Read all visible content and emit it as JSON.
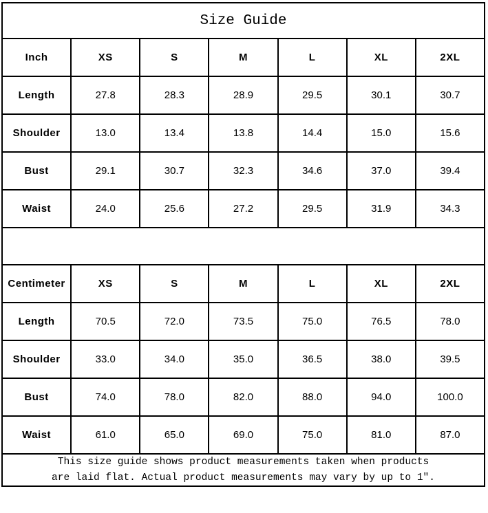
{
  "title": "Size Guide",
  "tables": [
    {
      "unit": "Inch",
      "sizes": [
        "XS",
        "S",
        "M",
        "L",
        "XL",
        "2XL"
      ],
      "rows": [
        {
          "label": "Length",
          "values": [
            "27.8",
            "28.3",
            "28.9",
            "29.5",
            "30.1",
            "30.7"
          ]
        },
        {
          "label": "Shoulder",
          "values": [
            "13.0",
            "13.4",
            "13.8",
            "14.4",
            "15.0",
            "15.6"
          ]
        },
        {
          "label": "Bust",
          "values": [
            "29.1",
            "30.7",
            "32.3",
            "34.6",
            "37.0",
            "39.4"
          ]
        },
        {
          "label": "Waist",
          "values": [
            "24.0",
            "25.6",
            "27.2",
            "29.5",
            "31.9",
            "34.3"
          ]
        }
      ]
    },
    {
      "unit": "Centimeter",
      "sizes": [
        "XS",
        "S",
        "M",
        "L",
        "XL",
        "2XL"
      ],
      "rows": [
        {
          "label": "Length",
          "values": [
            "70.5",
            "72.0",
            "73.5",
            "75.0",
            "76.5",
            "78.0"
          ]
        },
        {
          "label": "Shoulder",
          "values": [
            "33.0",
            "34.0",
            "35.0",
            "36.5",
            "38.0",
            "39.5"
          ]
        },
        {
          "label": "Bust",
          "values": [
            "74.0",
            "78.0",
            "82.0",
            "88.0",
            "94.0",
            "100.0"
          ]
        },
        {
          "label": "Waist",
          "values": [
            "61.0",
            "65.0",
            "69.0",
            "75.0",
            "81.0",
            "87.0"
          ]
        }
      ]
    }
  ],
  "footnote": {
    "line1": "This size guide shows product measurements taken when products",
    "line2": "are laid flat. Actual product measurements may vary by up to 1″."
  },
  "colors": {
    "border": "#000000",
    "background": "#ffffff",
    "text": "#000000"
  }
}
